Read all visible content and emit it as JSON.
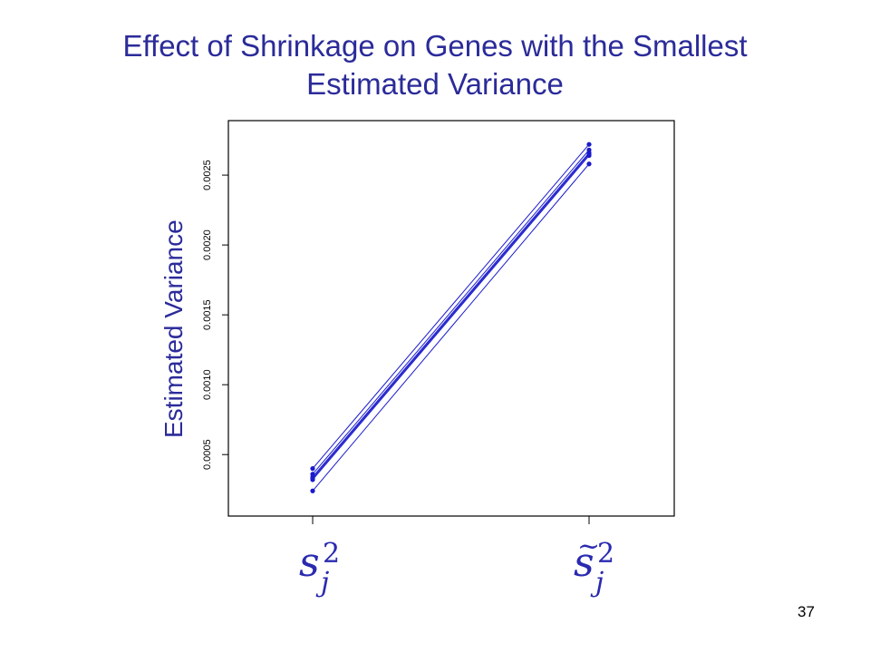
{
  "slide": {
    "title_line1": "Effect of Shrinkage on Genes with the Smallest",
    "title_line2": "Estimated Variance",
    "page_number": "37"
  },
  "chart_data": {
    "type": "line",
    "title": "",
    "ylabel": "Estimated Variance",
    "xlabel": "",
    "categories": [
      "s_j^2",
      "s̃_j^2"
    ],
    "category_display": [
      {
        "base": "s",
        "sup": "2",
        "sub": "j",
        "tilde": ""
      },
      {
        "base": "s",
        "sup": "2",
        "sub": "j",
        "tilde": "~"
      }
    ],
    "ylim": [
      6e-05,
      0.00289
    ],
    "yticks": [
      0.0005,
      0.001,
      0.0015,
      0.002,
      0.0025
    ],
    "ytick_labels": [
      "0.0005",
      "0.0010",
      "0.0015",
      "0.0020",
      "0.0025"
    ],
    "grid": false,
    "color": "#1a1acc",
    "series": [
      {
        "values": [
          0.0004,
          0.00272
        ]
      },
      {
        "values": [
          0.00036,
          0.00268
        ]
      },
      {
        "values": [
          0.00034,
          0.00266
        ]
      },
      {
        "values": [
          0.00033,
          0.00265
        ]
      },
      {
        "values": [
          0.00032,
          0.00264
        ]
      },
      {
        "values": [
          0.00024,
          0.00258
        ]
      }
    ]
  }
}
